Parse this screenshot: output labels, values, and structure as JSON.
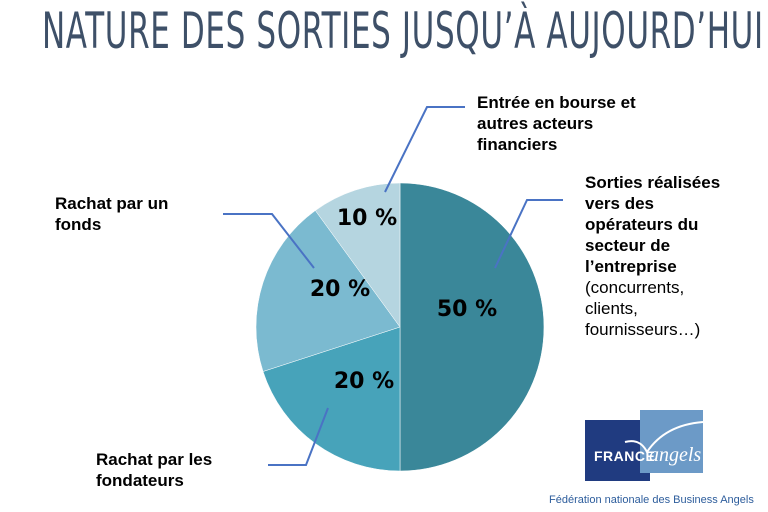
{
  "title": "NATURE DES SORTIES JUSQU’À AUJOURD’HUI",
  "chart_data": {
    "type": "pie",
    "title": "NATURE DES SORTIES JUSQU’À AUJOURD’HUI",
    "slices": [
      {
        "name": "Sorties réalisées vers des opérateurs du secteur de l’entreprise (concurrents, clients, fournisseurs…)",
        "value": 50,
        "label": "50 %",
        "color": "#3a8799"
      },
      {
        "name": "Rachat par les fondateurs",
        "value": 20,
        "label": "20 %",
        "color": "#47a3ba"
      },
      {
        "name": "Rachat par un fonds",
        "value": 20,
        "label": "20 %",
        "color": "#7bbad0"
      },
      {
        "name": "Entrée en bourse et autres acteurs financiers",
        "value": 10,
        "label": "10 %",
        "color": "#b5d5e0"
      }
    ],
    "leader_color": "#4a73c4"
  },
  "labels": {
    "operateurs_bold": "Sorties réalisées vers des opérateurs du secteur de l’entreprise",
    "operateurs_rest": "(concurrents, clients, fournisseurs…)",
    "fondateurs": "Rachat par les fondateurs",
    "fonds": "Rachat par un fonds",
    "bourse": "Entrée en bourse et autres acteurs financiers"
  },
  "logo": {
    "france": "FRANCE",
    "angels": "angels",
    "tagline": "Fédération nationale des Business Angels"
  }
}
